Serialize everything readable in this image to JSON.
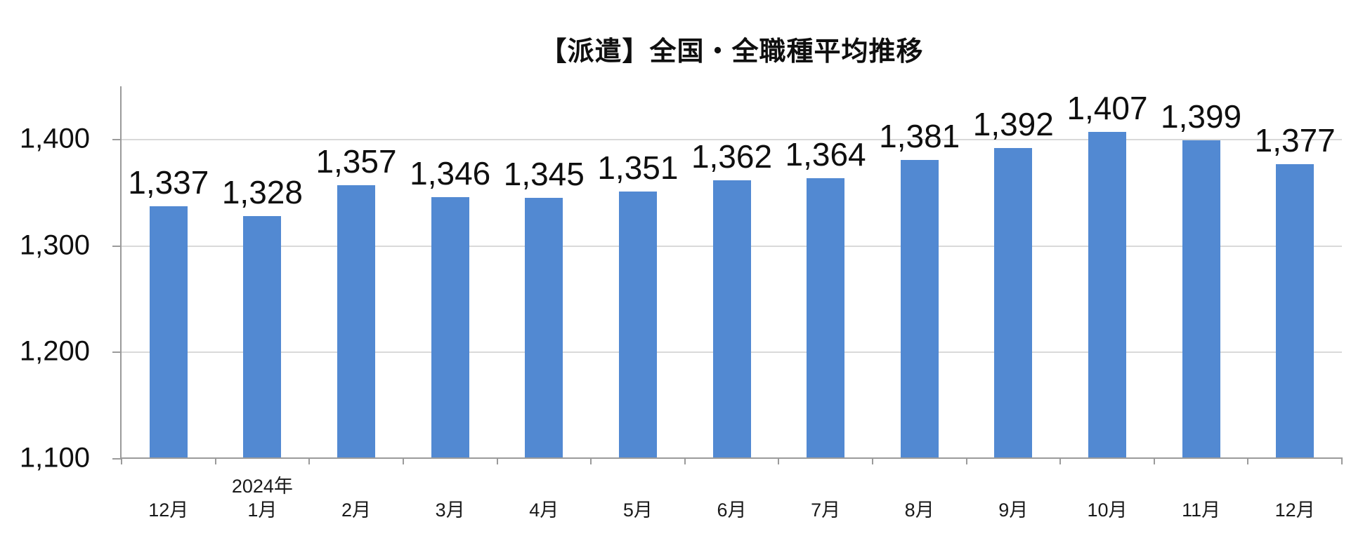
{
  "chart_data": {
    "type": "bar",
    "title": "【派遣】全国・全職種平均推移",
    "categories": [
      "12月",
      "1月",
      "2月",
      "3月",
      "4月",
      "5月",
      "6月",
      "7月",
      "8月",
      "9月",
      "10月",
      "11月",
      "12月"
    ],
    "values": [
      1337,
      1328,
      1357,
      1346,
      1345,
      1351,
      1362,
      1364,
      1381,
      1392,
      1407,
      1399,
      1377
    ],
    "value_labels": [
      "1,337",
      "1,328",
      "1,357",
      "1,346",
      "1,345",
      "1,351",
      "1,362",
      "1,364",
      "1,381",
      "1,392",
      "1,407",
      "1,399",
      "1,377"
    ],
    "year_annotation": "2024年",
    "year_annotation_index": 1,
    "y_ticks": [
      {
        "value": 1100,
        "label": "1,100"
      },
      {
        "value": 1200,
        "label": "1,200"
      },
      {
        "value": 1300,
        "label": "1,300"
      },
      {
        "value": 1400,
        "label": "1,400"
      }
    ],
    "ylim": [
      1100,
      1450
    ],
    "grid": true,
    "legend": "none",
    "bar_color": "#5289D2",
    "gridline_color": "#D9D9D9",
    "axis_color": "#9B9B9B",
    "text_color": "#0F0F0F"
  }
}
